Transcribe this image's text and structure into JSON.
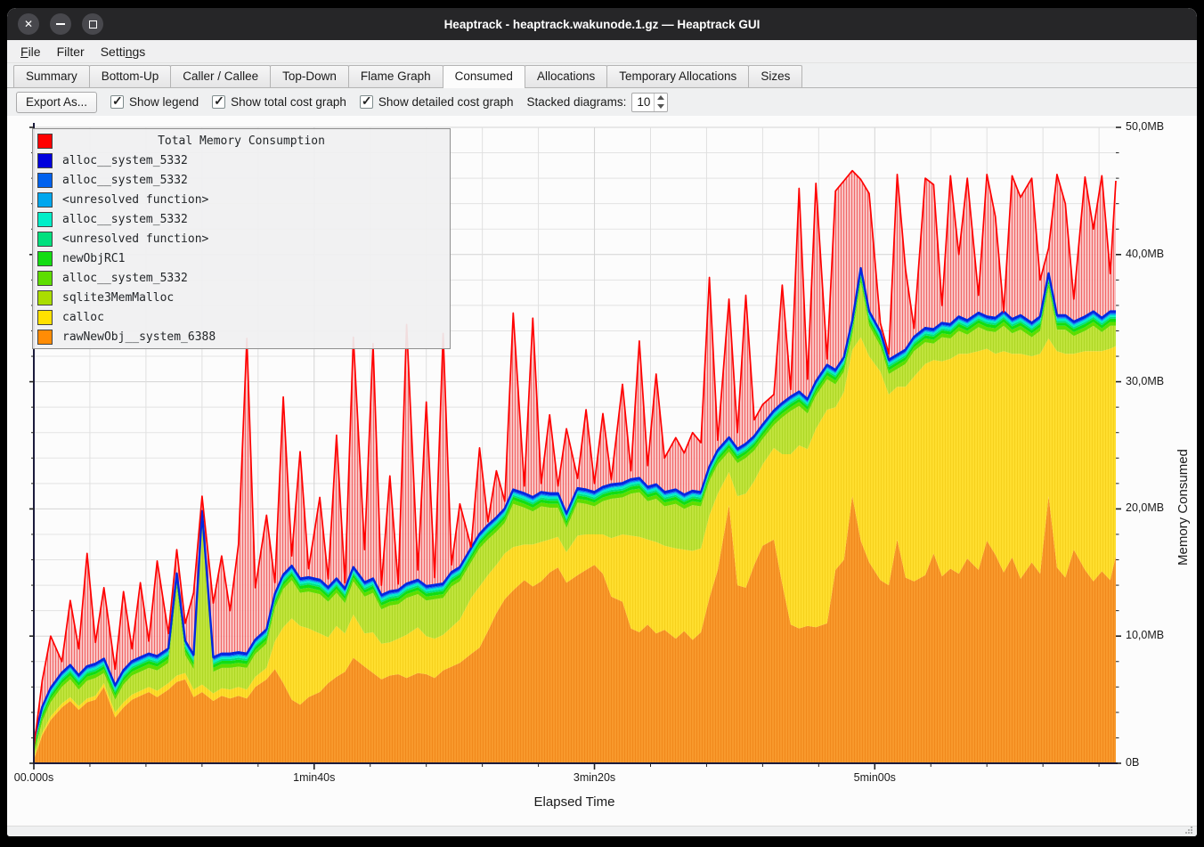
{
  "window": {
    "title": "Heaptrack - heaptrack.wakunode.1.gz — Heaptrack GUI"
  },
  "titlebar_controls": [
    {
      "name": "close",
      "glyph": "✕"
    },
    {
      "name": "minimize",
      "glyph": "–"
    },
    {
      "name": "maximize",
      "glyph": "□"
    }
  ],
  "menu": {
    "items": [
      {
        "label": "File",
        "mnemonic": "F"
      },
      {
        "label": "Filter",
        "mnemonic": ""
      },
      {
        "label": "Settings",
        "mnemonic": "n"
      }
    ]
  },
  "tabs": [
    {
      "label": "Summary",
      "active": false
    },
    {
      "label": "Bottom-Up",
      "active": false
    },
    {
      "label": "Caller / Callee",
      "active": false
    },
    {
      "label": "Top-Down",
      "active": false
    },
    {
      "label": "Flame Graph",
      "active": false
    },
    {
      "label": "Consumed",
      "active": true
    },
    {
      "label": "Allocations",
      "active": false
    },
    {
      "label": "Temporary Allocations",
      "active": false
    },
    {
      "label": "Sizes",
      "active": false
    }
  ],
  "toolbar": {
    "export_label": "Export As...",
    "checkboxes": [
      {
        "label": "Show legend",
        "checked": true
      },
      {
        "label": "Show total cost graph",
        "checked": true
      },
      {
        "label": "Show detailed cost graph",
        "checked": true
      }
    ],
    "stacked_label": "Stacked diagrams:",
    "stacked_value": "10"
  },
  "chart_data": {
    "type": "area",
    "title": "Total Memory Consumption",
    "xlabel": "Elapsed Time",
    "ylabel": "Memory Consumed",
    "xlim": [
      0,
      386
    ],
    "ylim": [
      0,
      50
    ],
    "x_ticks_major": [
      {
        "t": 0,
        "label": "00.000s"
      },
      {
        "t": 100,
        "label": "1min40s"
      },
      {
        "t": 200,
        "label": "3min20s"
      },
      {
        "t": 300,
        "label": "5min00s"
      }
    ],
    "x_minor_step": 20,
    "y_ticks_major": [
      {
        "v": 0,
        "label": "0B"
      },
      {
        "v": 10,
        "label": "10,0MB"
      },
      {
        "v": 20,
        "label": "20,0MB"
      },
      {
        "v": 30,
        "label": "30,0MB"
      },
      {
        "v": 40,
        "label": "40,0MB"
      },
      {
        "v": 50,
        "label": "50,0MB"
      }
    ],
    "y_minor_step": 2,
    "grid": true,
    "legend_position": "top-left",
    "x": [
      0,
      3,
      6,
      10,
      13,
      16,
      19,
      22,
      25,
      29,
      32,
      35,
      38,
      41,
      44,
      48,
      51,
      54,
      57,
      60,
      64,
      67,
      70,
      73,
      76,
      79,
      83,
      86,
      89,
      92,
      95,
      98,
      102,
      105,
      108,
      111,
      114,
      118,
      121,
      124,
      127,
      130,
      133,
      137,
      140,
      143,
      146,
      149,
      152,
      156,
      159,
      162,
      165,
      168,
      171,
      175,
      178,
      181,
      184,
      187,
      190,
      194,
      197,
      200,
      203,
      206,
      210,
      213,
      216,
      219,
      222,
      225,
      229,
      232,
      235,
      238,
      241,
      244,
      248,
      251,
      254,
      257,
      260,
      264,
      267,
      270,
      273,
      276,
      279,
      283,
      286,
      289,
      292,
      295,
      298,
      302,
      305,
      308,
      311,
      314,
      318,
      321,
      324,
      327,
      330,
      333,
      337,
      340,
      343,
      346,
      349,
      352,
      356,
      359,
      362,
      365,
      368,
      371,
      375,
      378,
      381,
      384,
      386
    ],
    "series": [
      {
        "name": "rawNewObj__system_6388",
        "color": "#ff8c05",
        "fill": "#f8992c",
        "stripe": "#ec7f10",
        "values": [
          0.3,
          2.2,
          3.4,
          4.4,
          4.9,
          4.2,
          4.8,
          5.0,
          6.0,
          3.6,
          4.4,
          5.0,
          5.3,
          5.6,
          5.2,
          5.8,
          6.4,
          6.6,
          5.2,
          5.6,
          4.9,
          5.3,
          5.1,
          5.3,
          5.1,
          6.0,
          6.6,
          7.4,
          6.3,
          5.0,
          4.6,
          5.2,
          5.6,
          6.3,
          6.8,
          7.2,
          8.3,
          7.6,
          7.1,
          6.6,
          6.9,
          7.0,
          6.7,
          7.1,
          7.0,
          6.7,
          7.3,
          7.6,
          7.9,
          8.6,
          9.1,
          10.4,
          11.8,
          12.9,
          13.6,
          14.4,
          13.9,
          14.3,
          15.0,
          15.4,
          14.2,
          14.8,
          15.2,
          15.6,
          14.9,
          13.1,
          12.7,
          10.6,
          10.3,
          10.9,
          10.2,
          10.5,
          9.8,
          10.4,
          9.7,
          10.3,
          13.0,
          15.2,
          20.3,
          14.0,
          13.8,
          15.6,
          17.1,
          17.6,
          14.1,
          10.9,
          10.6,
          10.8,
          10.7,
          11.0,
          15.2,
          16.0,
          21.0,
          17.5,
          15.8,
          14.4,
          14.0,
          17.6,
          14.6,
          14.3,
          14.8,
          16.5,
          14.7,
          15.3,
          14.9,
          16.1,
          15.2,
          17.5,
          16.4,
          15.0,
          16.2,
          14.5,
          15.8,
          14.9,
          21.0,
          15.4,
          14.6,
          16.8,
          15.2,
          14.3,
          15.1,
          14.4,
          16.3
        ]
      },
      {
        "name": "calloc",
        "color": "#ffe100",
        "fill": "#ffde2e",
        "stripe": "#eec70d",
        "values": [
          0.1,
          0.2,
          0.3,
          0.3,
          0.3,
          0.3,
          0.3,
          0.3,
          0.3,
          0.4,
          0.4,
          0.4,
          0.4,
          0.4,
          0.5,
          0.5,
          0.5,
          0.5,
          0.6,
          0.6,
          0.6,
          0.6,
          0.7,
          0.7,
          0.7,
          0.8,
          0.9,
          2.2,
          4.4,
          6.4,
          6.2,
          5.4,
          4.6,
          3.6,
          4.0,
          3.0,
          3.4,
          2.6,
          3.2,
          2.8,
          2.6,
          2.8,
          3.4,
          3.6,
          3.0,
          3.1,
          2.8,
          3.1,
          3.4,
          4.4,
          4.8,
          4.4,
          3.8,
          3.6,
          3.4,
          2.8,
          3.3,
          3.1,
          2.6,
          2.4,
          2.4,
          3.1,
          2.8,
          2.4,
          3.1,
          4.6,
          5.3,
          7.3,
          7.5,
          6.7,
          7.2,
          6.6,
          7.1,
          6.4,
          7.0,
          6.6,
          6.5,
          6.0,
          2.6,
          7.0,
          7.4,
          6.6,
          6.4,
          7.2,
          10.2,
          13.4,
          14.4,
          13.9,
          15.6,
          16.8,
          12.8,
          13.2,
          11.5,
          16.0,
          16.2,
          16.4,
          15.0,
          12.0,
          15.0,
          16.1,
          16.6,
          15.2,
          16.9,
          16.5,
          17.3,
          16.1,
          17.2,
          15.1,
          15.8,
          17.4,
          16.0,
          17.7,
          16.2,
          17.3,
          12.4,
          17.0,
          17.6,
          15.4,
          17.2,
          18.1,
          17.3,
          18.2,
          16.5
        ]
      },
      {
        "name": "sqlite3MemMalloc",
        "color": "#aadd00",
        "fill": "#c0e43c",
        "stripe": "#a3cf17",
        "values": [
          0.3,
          0.9,
          1.1,
          1.3,
          1.4,
          1.3,
          1.4,
          1.4,
          0.8,
          1.0,
          1.4,
          1.5,
          1.5,
          1.5,
          1.6,
          1.6,
          6.9,
          1.4,
          1.6,
          12.5,
          1.7,
          1.6,
          1.7,
          1.6,
          1.7,
          1.8,
          1.9,
          2.6,
          3.0,
          3.0,
          2.6,
          2.9,
          3.1,
          2.8,
          2.6,
          2.4,
          2.6,
          2.9,
          3.1,
          2.7,
          2.9,
          2.7,
          2.9,
          2.6,
          2.8,
          3.1,
          2.9,
          3.2,
          3.0,
          2.8,
          3.0,
          2.8,
          2.6,
          2.4,
          3.4,
          2.9,
          2.6,
          2.8,
          2.5,
          2.3,
          1.9,
          2.6,
          2.4,
          2.2,
          2.6,
          3.1,
          2.9,
          3.3,
          3.5,
          3.0,
          3.4,
          3.1,
          3.5,
          3.2,
          3.6,
          3.3,
          2.7,
          2.3,
          1.6,
          2.6,
          2.8,
          2.4,
          2.0,
          1.8,
          2.9,
          3.4,
          3.1,
          2.8,
          2.6,
          2.4,
          1.8,
          1.6,
          1.2,
          4.3,
          2.4,
          2.0,
          1.6,
          1.4,
          1.8,
          2.0,
          1.7,
          1.3,
          1.9,
          1.6,
          1.8,
          1.5,
          1.9,
          1.4,
          1.7,
          2.0,
          1.6,
          1.9,
          1.5,
          1.8,
          4.0,
          1.7,
          1.9,
          1.4,
          1.6,
          2.0,
          1.5,
          1.8,
          1.6
        ]
      },
      {
        "name": "alloc__system_5332",
        "color": "#5ddd00",
        "fill": "#5ddd00",
        "value_constant": 0.3
      },
      {
        "name": "newObjRC1",
        "color": "#12dd12",
        "fill": "#12dd12",
        "value_constant": 0.25
      },
      {
        "name": "<unresolved function>",
        "color": "#00e07e",
        "fill": "#00e07e",
        "value_constant": 0.15
      },
      {
        "name": "alloc__system_5332",
        "color": "#00eec8",
        "fill": "#00eec8",
        "value_constant": 0.15
      },
      {
        "name": "<unresolved function>",
        "color": "#00a7ee",
        "fill": "#00a7ee",
        "value_constant": 0.08
      },
      {
        "name": "alloc__system_5332",
        "color": "#0061ee",
        "fill": "#0061ee",
        "value_constant": 0.08
      },
      {
        "name": "alloc__system_5332",
        "color": "#0000dd",
        "fill": "#0000dd",
        "value_constant": 0.12
      }
    ],
    "total": {
      "name": "Total Memory Consumption",
      "color": "#ff0000",
      "hatch_fill": "#f9bcbc",
      "hatch_stripe": "#ee3d3d",
      "values": [
        1.2,
        6.5,
        10.0,
        8.0,
        12.8,
        9.0,
        16.5,
        9.5,
        13.8,
        7.4,
        13.5,
        9.0,
        14.2,
        9.6,
        15.9,
        10.2,
        16.8,
        11.0,
        13.4,
        21.0,
        12.6,
        16.3,
        12.0,
        17.2,
        33.4,
        13.8,
        19.5,
        14.2,
        28.8,
        16.3,
        24.5,
        15.3,
        20.9,
        14.5,
        25.8,
        14.2,
        33.5,
        16.8,
        33.0,
        14.0,
        22.6,
        14.1,
        34.5,
        15.2,
        28.4,
        14.6,
        33.8,
        15.6,
        20.4,
        17.0,
        24.8,
        19.0,
        23.0,
        20.6,
        35.4,
        21.8,
        35.0,
        22.0,
        27.4,
        21.8,
        26.3,
        22.4,
        27.8,
        22.0,
        27.5,
        22.3,
        29.8,
        23.0,
        33.2,
        23.4,
        30.6,
        24.0,
        25.6,
        24.4,
        26.0,
        25.2,
        38.2,
        25.4,
        36.5,
        26.0,
        36.8,
        27.0,
        28.2,
        29.0,
        37.6,
        29.4,
        45.2,
        30.2,
        45.6,
        31.8,
        45.0,
        45.8,
        46.6,
        45.9,
        44.8,
        34.6,
        32.2,
        46.3,
        38.8,
        34.2,
        46.0,
        45.5,
        36.0,
        46.2,
        40.0,
        46.0,
        36.8,
        46.3,
        43.0,
        35.5,
        46.2,
        44.5,
        46.0,
        38.0,
        40.5,
        46.3,
        44.0,
        36.5,
        46.1,
        42.0,
        46.2,
        38.5,
        45.8
      ]
    },
    "legend": {
      "title": "Total Memory Consumption",
      "title_color": "#ff0000",
      "entries": [
        {
          "label": "alloc__system_5332",
          "color": "#0000dd"
        },
        {
          "label": "alloc__system_5332",
          "color": "#0061ee"
        },
        {
          "label": "<unresolved function>",
          "color": "#00a7ee"
        },
        {
          "label": "alloc__system_5332",
          "color": "#00eec8"
        },
        {
          "label": "<unresolved function>",
          "color": "#00e07e"
        },
        {
          "label": "newObjRC1",
          "color": "#12dd12"
        },
        {
          "label": "alloc__system_5332",
          "color": "#5ddd00"
        },
        {
          "label": "sqlite3MemMalloc",
          "color": "#aadd00"
        },
        {
          "label": "calloc",
          "color": "#ffe100"
        },
        {
          "label": "rawNewObj__system_6388",
          "color": "#ff8c05"
        }
      ]
    }
  }
}
